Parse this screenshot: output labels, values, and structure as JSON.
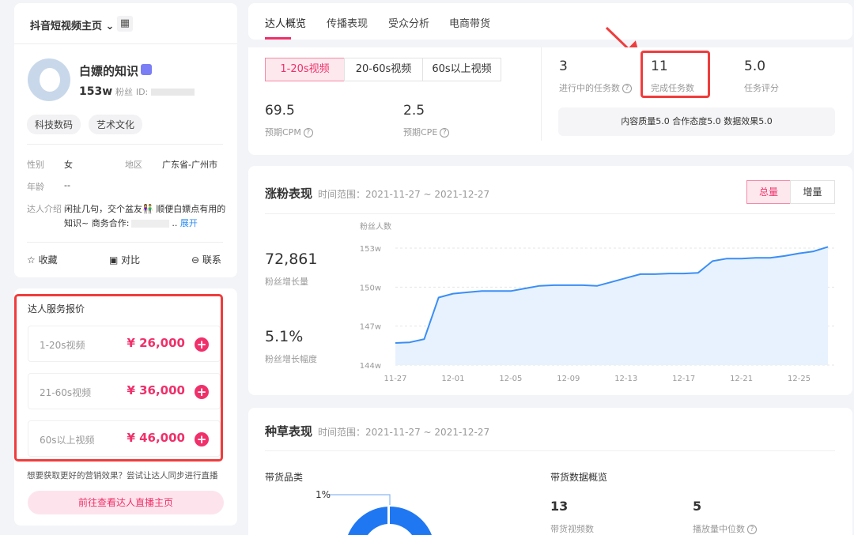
{
  "profile": {
    "platform_select": "抖音短视频主页",
    "name": "白嫖的知识",
    "fans_value": "153w",
    "fans_label": "粉丝",
    "id_label": "ID:",
    "tags": [
      "科技数码",
      "艺术文化"
    ],
    "gender_label": "性别",
    "gender": "女",
    "region_label": "地区",
    "region": "广东省-广州市",
    "age_label": "年龄",
    "age": "--",
    "intro_label": "达人介绍",
    "intro_line1": "闲扯几句，交个盆友👫 顺便白嫖点有用的",
    "intro_line2": "知识~ 商务合作:",
    "intro_ellipsis": "..",
    "expand": "展开",
    "actions": {
      "favorite": "收藏",
      "compare": "对比",
      "contact": "联系"
    }
  },
  "pricing": {
    "title": "达人服务报价",
    "items": [
      {
        "label": "1-20s视频",
        "price": "¥ 26,000"
      },
      {
        "label": "21-60s视频",
        "price": "¥ 36,000"
      },
      {
        "label": "60s以上视频",
        "price": "¥ 46,000"
      }
    ],
    "hint": "想要获取更好的营销效果？尝试让达人同步进行直播",
    "live_button": "前往查看达人直播主页"
  },
  "tabs": [
    "达人概览",
    "传播表现",
    "受众分析",
    "电商带货"
  ],
  "overview": {
    "segments": [
      "1-20s视频",
      "20-60s视频",
      "60s以上视频"
    ],
    "cpm": "69.5",
    "cpm_label": "预期CPM",
    "cpe": "2.5",
    "cpe_label": "预期CPE",
    "tasks_in_progress": "3",
    "tasks_in_progress_label": "进行中的任务数",
    "tasks_done": "11",
    "tasks_done_label": "完成任务数",
    "task_score": "5.0",
    "task_score_label": "任务评分",
    "score_detail": "内容质量5.0 合作态度5.0 数据效果5.0"
  },
  "fans": {
    "title": "涨粉表现",
    "range": "时间范围：2021-11-27 ~ 2021-12-27",
    "toggle": [
      "总量",
      "增量"
    ],
    "growth": "72,861",
    "growth_label": "粉丝增长量",
    "rate": "5.1%",
    "rate_label": "粉丝增长幅度"
  },
  "chart_data": {
    "type": "area",
    "ylabel": "粉丝人数",
    "ylim": [
      144,
      153
    ],
    "yticks": [
      "144w",
      "147w",
      "150w",
      "153w"
    ],
    "ytick_values": [
      144,
      147,
      150,
      153
    ],
    "xticks": [
      "11-27",
      "12-01",
      "12-05",
      "12-09",
      "12-13",
      "12-17",
      "12-21",
      "12-25"
    ],
    "x": [
      "11-27",
      "11-28",
      "11-29",
      "11-30",
      "12-01",
      "12-02",
      "12-03",
      "12-04",
      "12-05",
      "12-06",
      "12-07",
      "12-08",
      "12-09",
      "12-10",
      "12-11",
      "12-12",
      "12-13",
      "12-14",
      "12-15",
      "12-16",
      "12-17",
      "12-18",
      "12-19",
      "12-20",
      "12-21",
      "12-22",
      "12-23",
      "12-24",
      "12-25",
      "12-26",
      "12-27"
    ],
    "values": [
      145.7,
      145.75,
      146.0,
      149.2,
      149.5,
      149.6,
      149.7,
      149.7,
      149.7,
      149.9,
      150.1,
      150.15,
      150.15,
      150.15,
      150.1,
      150.4,
      150.7,
      151.0,
      151.0,
      151.05,
      151.05,
      151.1,
      152.0,
      152.2,
      152.2,
      152.25,
      152.25,
      152.4,
      152.6,
      152.75,
      153.1
    ],
    "color": "#3a8ef6",
    "grid": true
  },
  "seeding": {
    "title": "种草表现",
    "range": "时间范围：2021-11-27 ~ 2021-12-27",
    "category_title": "带货品类",
    "donut_label": "1%",
    "overview_title": "带货数据概览",
    "videos": "13",
    "videos_label": "带货视频数",
    "median": "5",
    "median_label": "播放量中位数"
  },
  "colors": {
    "accent": "#f0306a",
    "highlight": "#f03c3c",
    "blue": "#1f77f2"
  }
}
